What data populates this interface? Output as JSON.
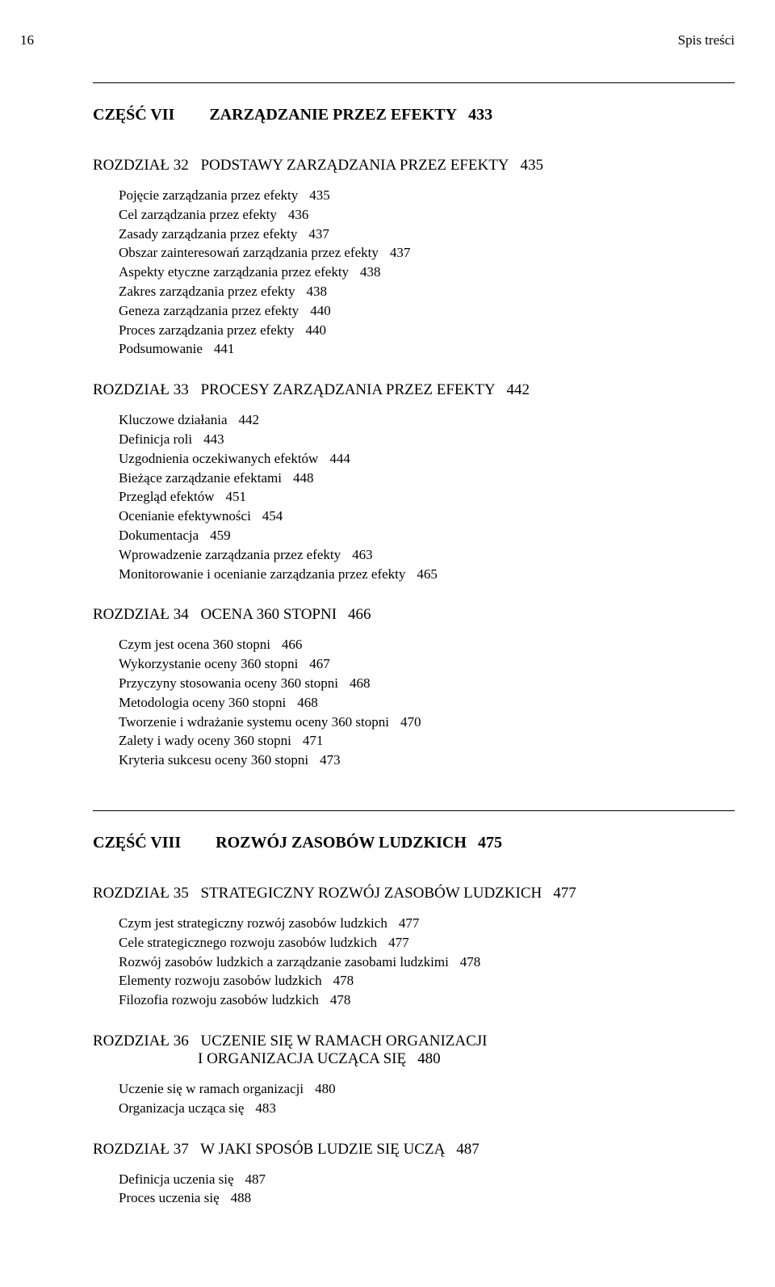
{
  "header": {
    "page_number": "16",
    "running_title": "Spis treści"
  },
  "part7": {
    "label": "CZĘŚĆ VII",
    "title": "ZARZĄDZANIE PRZEZ EFEKTY",
    "page": "433"
  },
  "ch32": {
    "label": "ROZDZIAŁ 32",
    "title": "PODSTAWY ZARZĄDZANIA PRZEZ EFEKTY",
    "page": "435",
    "items": [
      {
        "text": "Pojęcie zarządzania przez efekty",
        "page": "435"
      },
      {
        "text": "Cel zarządzania przez efekty",
        "page": "436"
      },
      {
        "text": "Zasady zarządzania przez efekty",
        "page": "437"
      },
      {
        "text": "Obszar zainteresowań zarządzania przez efekty",
        "page": "437"
      },
      {
        "text": "Aspekty etyczne zarządzania przez efekty",
        "page": "438"
      },
      {
        "text": "Zakres zarządzania przez efekty",
        "page": "438"
      },
      {
        "text": "Geneza zarządzania przez efekty",
        "page": "440"
      },
      {
        "text": "Proces zarządzania przez efekty",
        "page": "440"
      },
      {
        "text": "Podsumowanie",
        "page": "441"
      }
    ]
  },
  "ch33": {
    "label": "ROZDZIAŁ 33",
    "title": "PROCESY ZARZĄDZANIA PRZEZ EFEKTY",
    "page": "442",
    "items": [
      {
        "text": "Kluczowe działania",
        "page": "442"
      },
      {
        "text": "Definicja roli",
        "page": "443"
      },
      {
        "text": "Uzgodnienia oczekiwanych efektów",
        "page": "444"
      },
      {
        "text": "Bieżące zarządzanie efektami",
        "page": "448"
      },
      {
        "text": "Przegląd efektów",
        "page": "451"
      },
      {
        "text": "Ocenianie efektywności",
        "page": "454"
      },
      {
        "text": "Dokumentacja",
        "page": "459"
      },
      {
        "text": "Wprowadzenie zarządzania przez efekty",
        "page": "463"
      },
      {
        "text": "Monitorowanie i ocenianie zarządzania przez efekty",
        "page": "465"
      }
    ]
  },
  "ch34": {
    "label": "ROZDZIAŁ 34",
    "title": "OCENA 360 STOPNI",
    "page": "466",
    "items": [
      {
        "text": "Czym jest ocena 360 stopni",
        "page": "466"
      },
      {
        "text": "Wykorzystanie oceny 360 stopni",
        "page": "467"
      },
      {
        "text": "Przyczyny stosowania oceny 360 stopni",
        "page": "468"
      },
      {
        "text": "Metodologia oceny 360 stopni",
        "page": "468"
      },
      {
        "text": "Tworzenie i wdrażanie systemu oceny 360 stopni",
        "page": "470"
      },
      {
        "text": "Zalety i wady oceny 360 stopni",
        "page": "471"
      },
      {
        "text": "Kryteria sukcesu oceny 360 stopni",
        "page": "473"
      }
    ]
  },
  "part8": {
    "label": "CZĘŚĆ VIII",
    "title": "ROZWÓJ ZASOBÓW LUDZKICH",
    "page": "475"
  },
  "ch35": {
    "label": "ROZDZIAŁ 35",
    "title": "STRATEGICZNY ROZWÓJ ZASOBÓW LUDZKICH",
    "page": "477",
    "items": [
      {
        "text": "Czym jest strategiczny rozwój zasobów ludzkich",
        "page": "477"
      },
      {
        "text": "Cele strategicznego rozwoju zasobów ludzkich",
        "page": "477"
      },
      {
        "text": "Rozwój zasobów ludzkich a zarządzanie zasobami ludzkimi",
        "page": "478"
      },
      {
        "text": "Elementy rozwoju zasobów ludzkich",
        "page": "478"
      },
      {
        "text": "Filozofia rozwoju zasobów ludzkich",
        "page": "478"
      }
    ]
  },
  "ch36": {
    "label": "ROZDZIAŁ 36",
    "title": "UCZENIE SIĘ W RAMACH ORGANIZACJI",
    "title2": "I ORGANIZACJA UCZĄCA SIĘ",
    "page": "480",
    "items": [
      {
        "text": "Uczenie się w ramach organizacji",
        "page": "480"
      },
      {
        "text": "Organizacja ucząca się",
        "page": "483"
      }
    ]
  },
  "ch37": {
    "label": "ROZDZIAŁ 37",
    "title": "W JAKI SPOSÓB LUDZIE SIĘ UCZĄ",
    "page": "487",
    "items": [
      {
        "text": "Definicja uczenia się",
        "page": "487"
      },
      {
        "text": "Proces uczenia się",
        "page": "488"
      }
    ]
  }
}
